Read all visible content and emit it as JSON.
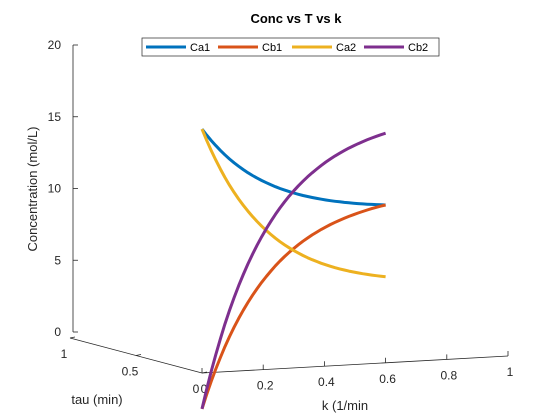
{
  "chart_data": {
    "type": "line",
    "title": "Conc vs T vs k",
    "zlabel": "Concentration (mol/L)",
    "xlabel": "k (1/min",
    "ylabel": "tau (min)",
    "zlim": [
      0,
      20
    ],
    "xlim": [
      0,
      1
    ],
    "ylim": [
      0,
      1
    ],
    "z_ticks": [
      "0",
      "5",
      "10",
      "15",
      "20"
    ],
    "x_ticks": [
      "0",
      "0.2",
      "0.4",
      "0.6",
      "0.8",
      "1"
    ],
    "y_ticks": [
      "0",
      "0.5",
      "1"
    ],
    "grid": false,
    "legend_position": "top-center",
    "legend_orientation": "horizontal",
    "series": [
      {
        "name": "Ca1",
        "color": "#0072BD",
        "x": [
          0,
          0.6
        ],
        "z": [
          17,
          11
        ]
      },
      {
        "name": "Cb1",
        "color": "#D95319",
        "x": [
          0,
          0.6
        ],
        "z": [
          -2.5,
          11
        ]
      },
      {
        "name": "Ca2",
        "color": "#EDB120",
        "x": [
          0,
          0.6
        ],
        "z": [
          17,
          6
        ]
      },
      {
        "name": "Cb2",
        "color": "#7E2F8E",
        "x": [
          0,
          0.6
        ],
        "z": [
          -2.5,
          16
        ]
      }
    ]
  }
}
